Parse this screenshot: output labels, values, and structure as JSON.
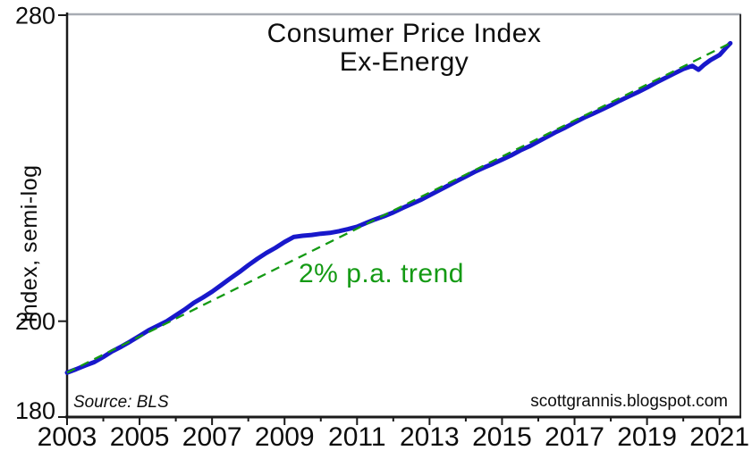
{
  "page": {
    "background": "#ffffff"
  },
  "chart_data": {
    "type": "line",
    "title": "Consumer Price Index",
    "subtitle": "Ex-Energy",
    "ylabel": "Index, semi-log",
    "xlabel": "",
    "y_scale": "log",
    "ylim": [
      180,
      280
    ],
    "xlim": [
      2003,
      2021.6
    ],
    "grid": "off",
    "legend": "none",
    "y_ticks": [
      280,
      200,
      180
    ],
    "x_ticks_labeled": [
      2003,
      2005,
      2007,
      2009,
      2011,
      2013,
      2015,
      2017,
      2019,
      2021
    ],
    "x_ticks_minor": [
      2004,
      2006,
      2008,
      2010,
      2012,
      2014,
      2016,
      2018,
      2020
    ],
    "series": [
      {
        "name": "CPI Ex-Energy index",
        "type": "line",
        "color": "#1818cb",
        "points": [
          [
            2003.0,
            189.0
          ],
          [
            2003.25,
            189.7
          ],
          [
            2003.5,
            190.5
          ],
          [
            2003.75,
            191.2
          ],
          [
            2004.0,
            192.3
          ],
          [
            2004.25,
            193.5
          ],
          [
            2004.5,
            194.5
          ],
          [
            2004.75,
            195.6
          ],
          [
            2005.0,
            196.8
          ],
          [
            2005.25,
            198.0
          ],
          [
            2005.5,
            199.0
          ],
          [
            2005.75,
            200.0
          ],
          [
            2006.0,
            201.3
          ],
          [
            2006.25,
            202.6
          ],
          [
            2006.5,
            204.1
          ],
          [
            2006.75,
            205.3
          ],
          [
            2007.0,
            206.6
          ],
          [
            2007.25,
            208.1
          ],
          [
            2007.5,
            209.6
          ],
          [
            2007.75,
            211.1
          ],
          [
            2008.0,
            212.7
          ],
          [
            2008.25,
            214.2
          ],
          [
            2008.5,
            215.6
          ],
          [
            2008.75,
            216.8
          ],
          [
            2009.0,
            218.2
          ],
          [
            2009.25,
            219.4
          ],
          [
            2009.5,
            219.7
          ],
          [
            2009.75,
            219.9
          ],
          [
            2010.0,
            220.2
          ],
          [
            2010.25,
            220.4
          ],
          [
            2010.5,
            220.8
          ],
          [
            2010.75,
            221.3
          ],
          [
            2011.0,
            221.9
          ],
          [
            2011.25,
            222.8
          ],
          [
            2011.5,
            223.7
          ],
          [
            2011.75,
            224.5
          ],
          [
            2012.0,
            225.4
          ],
          [
            2012.25,
            226.5
          ],
          [
            2012.5,
            227.5
          ],
          [
            2012.75,
            228.5
          ],
          [
            2013.0,
            229.7
          ],
          [
            2013.25,
            230.9
          ],
          [
            2013.5,
            232.1
          ],
          [
            2013.75,
            233.3
          ],
          [
            2014.0,
            234.5
          ],
          [
            2014.25,
            235.7
          ],
          [
            2014.5,
            236.8
          ],
          [
            2014.75,
            237.8
          ],
          [
            2015.0,
            238.9
          ],
          [
            2015.25,
            240.0
          ],
          [
            2015.5,
            241.3
          ],
          [
            2015.75,
            242.4
          ],
          [
            2016.0,
            243.7
          ],
          [
            2016.25,
            245.0
          ],
          [
            2016.5,
            246.3
          ],
          [
            2016.75,
            247.5
          ],
          [
            2017.0,
            248.8
          ],
          [
            2017.25,
            250.1
          ],
          [
            2017.5,
            251.2
          ],
          [
            2017.75,
            252.4
          ],
          [
            2018.0,
            253.6
          ],
          [
            2018.25,
            254.9
          ],
          [
            2018.5,
            256.1
          ],
          [
            2018.75,
            257.3
          ],
          [
            2019.0,
            258.6
          ],
          [
            2019.25,
            260.0
          ],
          [
            2019.5,
            261.3
          ],
          [
            2019.75,
            262.6
          ],
          [
            2020.0,
            263.9
          ],
          [
            2020.25,
            264.8
          ],
          [
            2020.42,
            263.7
          ],
          [
            2020.58,
            265.2
          ],
          [
            2020.75,
            266.5
          ],
          [
            2021.0,
            268.0
          ],
          [
            2021.1,
            269.2
          ],
          [
            2021.2,
            270.4
          ],
          [
            2021.3,
            271.5
          ]
        ]
      },
      {
        "name": "2% p.a. trend",
        "type": "trend",
        "color": "#149a14",
        "dashed": true,
        "start_year": 2003,
        "start_value": 189,
        "rate_pct_per_year": 2.0,
        "end_year": 2021.33,
        "end_value": 271.7
      }
    ],
    "annotations": {
      "trend_label": "2% p.a. trend",
      "source": "Source: BLS",
      "watermark": "scottgrannis.blogspot.com"
    }
  },
  "frame": {
    "axis_color": "#1a1a1a",
    "top_border_color": "#a7acb3",
    "right_border_color": "#333333",
    "text_color": "#0d0d0d"
  }
}
